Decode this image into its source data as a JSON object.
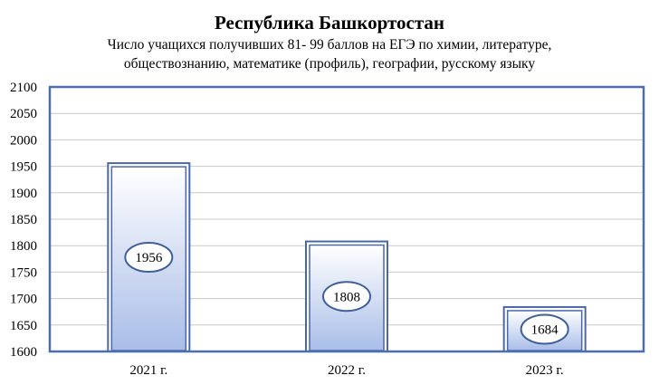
{
  "chart_data": {
    "type": "bar",
    "title": "Республика Башкортостан",
    "subtitle_lines": [
      "Число учащихся получивших 81- 99 баллов на ЕГЭ по химии, литературе,",
      "обществознанию,  математике (профиль), географии, русскому языку"
    ],
    "categories": [
      "2021 г.",
      "2022 г.",
      "2023 г."
    ],
    "values": [
      1956,
      1808,
      1684
    ],
    "data_labels": [
      "1956",
      "1808",
      "1684"
    ],
    "ylim": [
      1600,
      2100
    ],
    "yticks": [
      1600,
      1650,
      1700,
      1750,
      1800,
      1850,
      1900,
      1950,
      2000,
      2050,
      2100
    ],
    "ytick_labels": [
      "1600",
      "1650",
      "1700",
      "1750",
      "1800",
      "1850",
      "1900",
      "1950",
      "2000",
      "2050",
      "2100"
    ],
    "grid": true,
    "legend": "none",
    "colors": {
      "bar_top": "#ffffff",
      "bar_bottom": "#a9bde8",
      "bar_outline": "#4a67a8",
      "plot_border": "#4a6fb0",
      "grid": "#c8c8c8",
      "label_border": "#3f5f9a"
    }
  }
}
